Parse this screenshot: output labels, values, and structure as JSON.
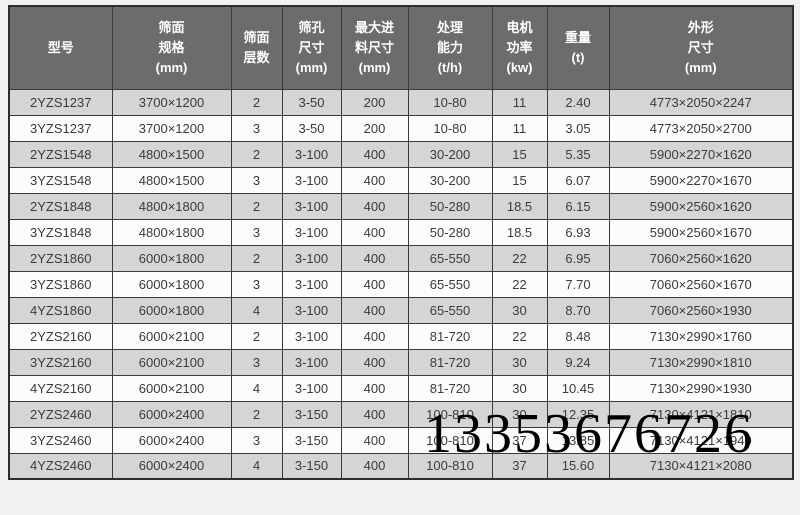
{
  "colors": {
    "header_background": "#6c6c6c",
    "header_text": "#ffffff",
    "row_stripe": "#d5d5d5",
    "row_plain": "#fcfcfc",
    "grid_border": "#3a3a3a",
    "cell_text": "#3b3b3b",
    "watermark": "#000000"
  },
  "watermark": {
    "text": "13353676726"
  },
  "table": {
    "columns": [
      "型号",
      "筛面\n规格\n(mm)",
      "筛面\n层数",
      "筛孔\n尺寸\n(mm)",
      "最大进\n料尺寸\n(mm)",
      "处理\n能力\n(t/h)",
      "电机\n功率\n(kw)",
      "重量\n(t)",
      "外形\n尺寸\n(mm)"
    ],
    "rows": [
      [
        "2YZS1237",
        "3700×1200",
        "2",
        "3-50",
        "200",
        "10-80",
        "11",
        "2.40",
        "4773×2050×2247"
      ],
      [
        "3YZS1237",
        "3700×1200",
        "3",
        "3-50",
        "200",
        "10-80",
        "11",
        "3.05",
        "4773×2050×2700"
      ],
      [
        "2YZS1548",
        "4800×1500",
        "2",
        "3-100",
        "400",
        "30-200",
        "15",
        "5.35",
        "5900×2270×1620"
      ],
      [
        "3YZS1548",
        "4800×1500",
        "3",
        "3-100",
        "400",
        "30-200",
        "15",
        "6.07",
        "5900×2270×1670"
      ],
      [
        "2YZS1848",
        "4800×1800",
        "2",
        "3-100",
        "400",
        "50-280",
        "18.5",
        "6.15",
        "5900×2560×1620"
      ],
      [
        "3YZS1848",
        "4800×1800",
        "3",
        "3-100",
        "400",
        "50-280",
        "18.5",
        "6.93",
        "5900×2560×1670"
      ],
      [
        "2YZS1860",
        "6000×1800",
        "2",
        "3-100",
        "400",
        "65-550",
        "22",
        "6.95",
        "7060×2560×1620"
      ],
      [
        "3YZS1860",
        "6000×1800",
        "3",
        "3-100",
        "400",
        "65-550",
        "22",
        "7.70",
        "7060×2560×1670"
      ],
      [
        "4YZS1860",
        "6000×1800",
        "4",
        "3-100",
        "400",
        "65-550",
        "30",
        "8.70",
        "7060×2560×1930"
      ],
      [
        "2YZS2160",
        "6000×2100",
        "2",
        "3-100",
        "400",
        "81-720",
        "22",
        "8.48",
        "7130×2990×1760"
      ],
      [
        "3YZS2160",
        "6000×2100",
        "3",
        "3-100",
        "400",
        "81-720",
        "30",
        "9.24",
        "7130×2990×1810"
      ],
      [
        "4YZS2160",
        "6000×2100",
        "4",
        "3-100",
        "400",
        "81-720",
        "30",
        "10.45",
        "7130×2990×1930"
      ],
      [
        "2YZS2460",
        "6000×2400",
        "2",
        "3-150",
        "400",
        "100-810",
        "30",
        "12.35",
        "7130×4121×1810"
      ],
      [
        "3YZS2460",
        "6000×2400",
        "3",
        "3-150",
        "400",
        "100-810",
        "37",
        "13.85",
        "7130×4121×1940"
      ],
      [
        "4YZS2460",
        "6000×2400",
        "4",
        "3-150",
        "400",
        "100-810",
        "37",
        "15.60",
        "7130×4121×2080"
      ]
    ]
  }
}
